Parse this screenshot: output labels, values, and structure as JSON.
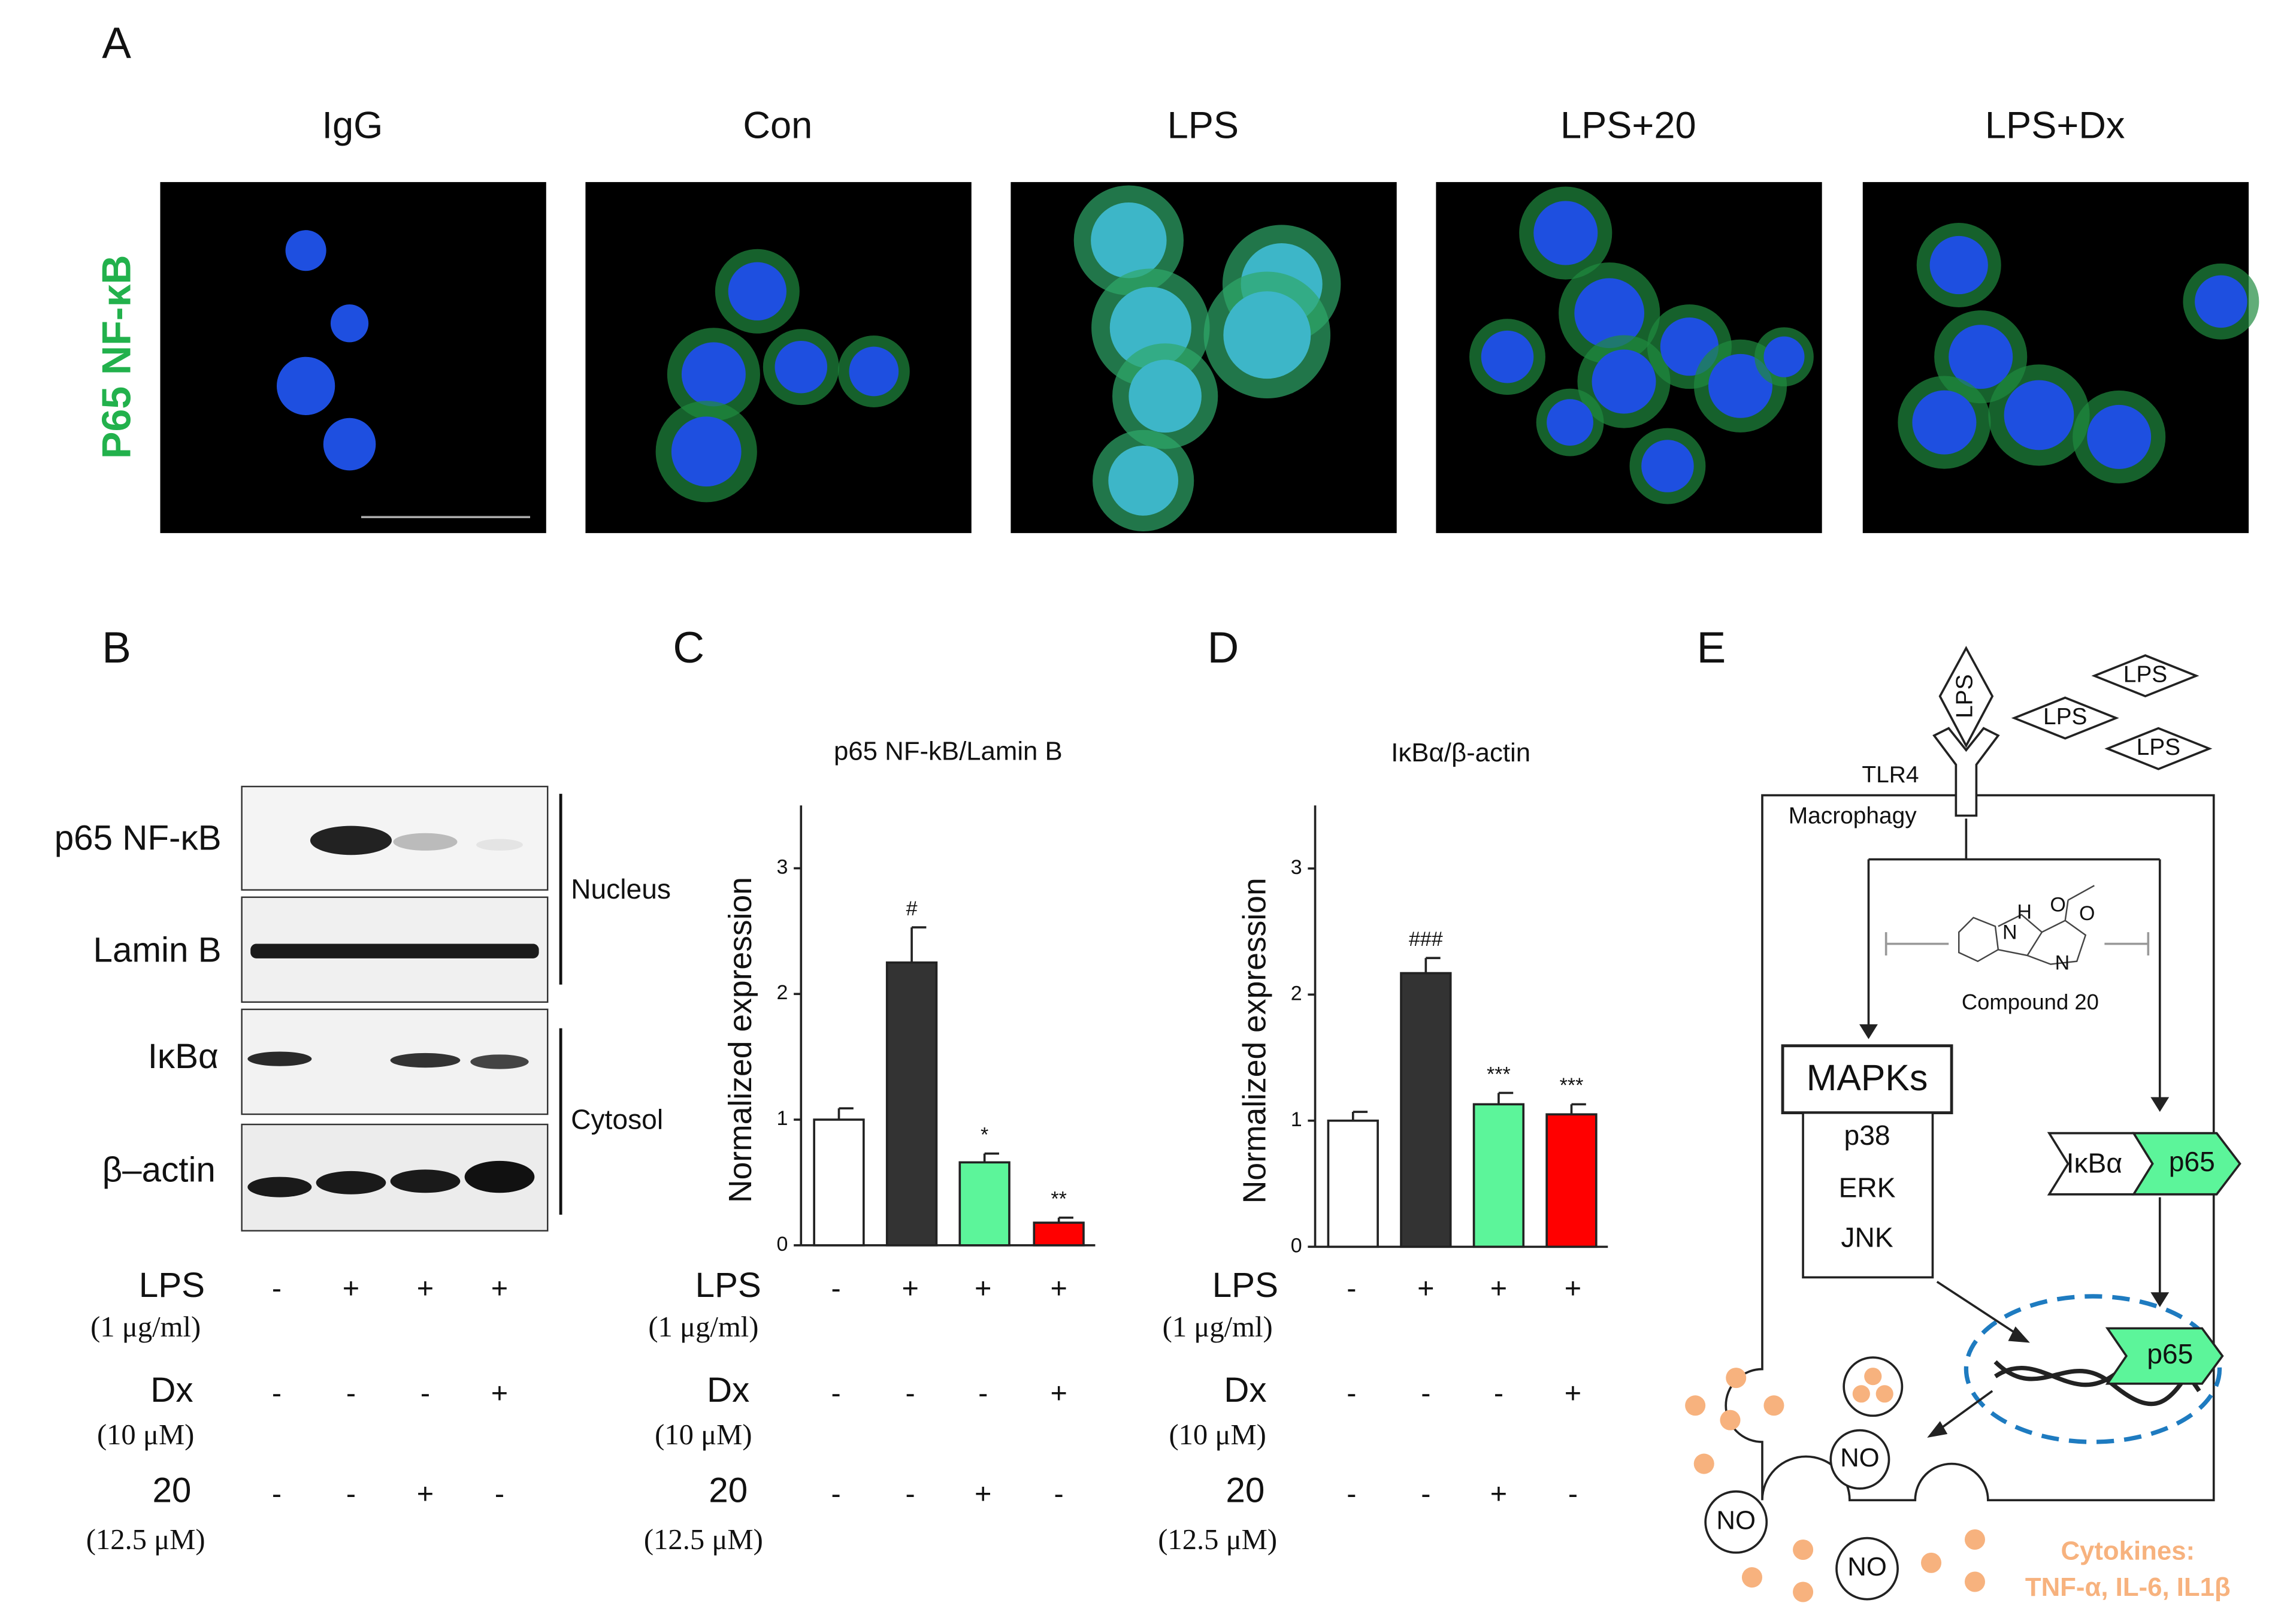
{
  "panel_labels": [
    "A",
    "B",
    "C",
    "D",
    "E"
  ],
  "panel_a": {
    "ylabel": "P65 NF-κB",
    "columns": [
      "IgG",
      "Con",
      "LPS",
      "LPS+20",
      "LPS+Dx"
    ]
  },
  "panel_b": {
    "rows": [
      "p65 NF-κB",
      "Lamin B",
      "IκBα",
      "β–actin"
    ],
    "compartments": [
      "Nucleus",
      "Cytosol"
    ]
  },
  "treatments": [
    {
      "name": "LPS",
      "dose": "(1 μg/ml)",
      "signs": [
        "-",
        "+",
        "+",
        "+"
      ]
    },
    {
      "name": "Dx",
      "dose": "(10 μM)",
      "signs": [
        "-",
        "-",
        "-",
        "+"
      ]
    },
    {
      "name": "20",
      "dose": "(12.5 μM)",
      "signs": [
        "-",
        "-",
        "+",
        "-"
      ]
    }
  ],
  "chart_data": [
    {
      "type": "bar",
      "title": "p65 NF-kB/Lamin B",
      "y_label": "Normalized expression",
      "values": [
        1.0,
        2.25,
        0.66,
        0.18
      ],
      "errors": [
        0.09,
        0.28,
        0.07,
        0.04
      ],
      "annotations": [
        null,
        "#",
        "*",
        "**"
      ],
      "colors": [
        "#ffffff",
        "#333333",
        "#5cf59a",
        "#ff0000"
      ],
      "ylim": [
        0,
        3.5
      ],
      "yticks": [
        0,
        1,
        2,
        3
      ]
    },
    {
      "type": "bar",
      "title": "IκBα/β-actin",
      "y_label": "Normalized expression",
      "values": [
        1.0,
        2.17,
        1.13,
        1.05
      ],
      "errors": [
        0.07,
        0.12,
        0.09,
        0.08
      ],
      "annotations": [
        null,
        "###",
        "***",
        "***"
      ],
      "colors": [
        "#ffffff",
        "#333333",
        "#5cf59a",
        "#ff0000"
      ],
      "ylim": [
        0,
        3.5
      ],
      "yticks": [
        0,
        1,
        2,
        3
      ]
    }
  ],
  "panel_e": {
    "ligand": "LPS",
    "receptor": "TLR4",
    "cell": "Macrophagy",
    "compound": "Compound 20",
    "atoms": [
      "N",
      "H",
      "O",
      "O",
      "N"
    ],
    "mapks": {
      "title": "MAPKs",
      "items": [
        "p38",
        "ERK",
        "JNK"
      ]
    },
    "complex": [
      "IκBα",
      "p65"
    ],
    "nuclear": "p65",
    "product": "NO",
    "cytokines": [
      "Cytokines:",
      "TNF-α, IL-6, IL1β"
    ]
  }
}
